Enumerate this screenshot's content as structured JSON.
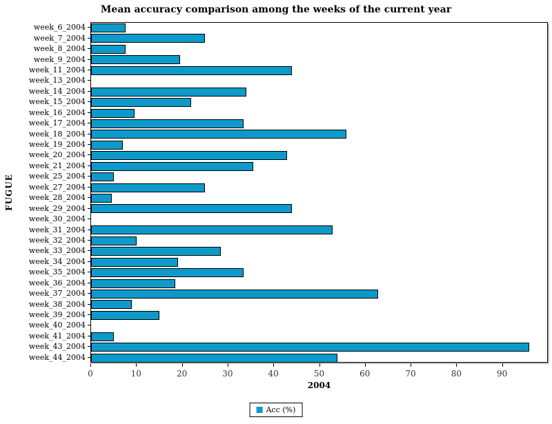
{
  "title": "Mean accuracy comparison among the weeks of the current year",
  "legend": {
    "label": "Acc (%)"
  },
  "colors": {
    "bar_fill": "#0D9ACB",
    "bar_border": "#000000",
    "plot_border": "#000000",
    "background": "#FFFFFF",
    "tick_text": "#333333"
  },
  "chart_data": {
    "type": "bar",
    "orientation": "horizontal",
    "title": "Mean accuracy comparison among the weeks of the current year",
    "xlabel": "2004",
    "ylabel": "FUGUE",
    "series_name": "Acc (%)",
    "categories": [
      "week_6_2004",
      "week_7_2004",
      "week_8_2004",
      "week_9_2004",
      "week_11_2004",
      "week_13_2004",
      "week_14_2004",
      "week_15_2004",
      "week_16_2004",
      "week_17_2004",
      "week_18_2004",
      "week_19_2004",
      "week_20_2004",
      "week_21_2004",
      "week_25_2004",
      "week_27_2004",
      "week_28_2004",
      "week_29_2004",
      "week_30_2004",
      "week_31_2004",
      "week_32_2004",
      "week_33_2004",
      "week_34_2004",
      "week_35_2004",
      "week_36_2004",
      "week_37_2004",
      "week_38_2004",
      "week_39_2004",
      "week_40_2004",
      "week_41_2004",
      "week_43_2004",
      "week_44_2004"
    ],
    "values": [
      7.5,
      25,
      7.5,
      19.5,
      44,
      0,
      34,
      22,
      9.5,
      33.5,
      56,
      7,
      43,
      35.5,
      5,
      25,
      4.5,
      44,
      0,
      53,
      10,
      28.5,
      19,
      33.5,
      18.5,
      63,
      9,
      15,
      0,
      5,
      96,
      54
    ],
    "xlim": [
      0,
      100
    ],
    "xticks": [
      0,
      10,
      20,
      30,
      40,
      50,
      60,
      70,
      80,
      90
    ],
    "grid": false,
    "legend_position": "bottom"
  }
}
